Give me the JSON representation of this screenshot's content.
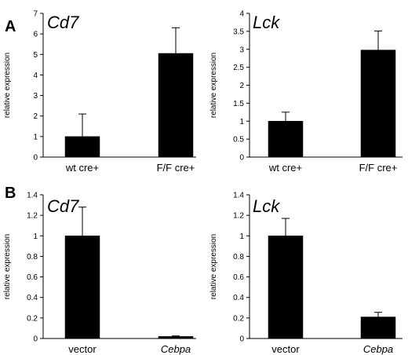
{
  "panels": [
    "A",
    "B"
  ],
  "chart_data": [
    {
      "type": "bar",
      "panel": "A",
      "title": "Cd7",
      "ylabel": "relative expression",
      "categories": [
        "wt cre+",
        "F/F cre+"
      ],
      "values": [
        1.0,
        5.05
      ],
      "error": [
        1.1,
        1.25
      ],
      "ylim": [
        0,
        7
      ],
      "yticks": [
        "0",
        "1",
        "2",
        "3",
        "4",
        "5",
        "6",
        "7"
      ],
      "italic_categories": false,
      "bar_color": "#000000"
    },
    {
      "type": "bar",
      "panel": "A",
      "title": "Lck",
      "ylabel": "relative expression",
      "categories": [
        "wt cre+",
        "F/F cre+"
      ],
      "values": [
        1.0,
        2.98
      ],
      "error": [
        0.25,
        0.53
      ],
      "ylim": [
        0,
        4
      ],
      "yticks": [
        "0",
        "0.5",
        "1",
        "1.5",
        "2",
        "2.5",
        "3",
        "3.5",
        "4"
      ],
      "italic_categories": false,
      "bar_color": "#000000"
    },
    {
      "type": "bar",
      "panel": "B",
      "title": "Cd7",
      "ylabel": "relative expression",
      "categories": [
        "vector",
        "Cebpa"
      ],
      "values": [
        1.0,
        0.02
      ],
      "error": [
        0.28,
        0.005
      ],
      "ylim": [
        0,
        1.4
      ],
      "yticks": [
        "0",
        "0.2",
        "0.4",
        "0.6",
        "0.8",
        "1",
        "1.2",
        "1.4"
      ],
      "italic_categories": [
        false,
        true
      ],
      "bar_color": "#000000"
    },
    {
      "type": "bar",
      "panel": "B",
      "title": "Lck",
      "ylabel": "relative expression",
      "categories": [
        "vector",
        "Cebpa"
      ],
      "values": [
        1.0,
        0.21
      ],
      "error": [
        0.17,
        0.045
      ],
      "ylim": [
        0,
        1.4
      ],
      "yticks": [
        "0",
        "0.2",
        "0.4",
        "0.6",
        "0.8",
        "1",
        "1.2",
        "1.4"
      ],
      "italic_categories": [
        false,
        true
      ],
      "bar_color": "#000000"
    }
  ]
}
